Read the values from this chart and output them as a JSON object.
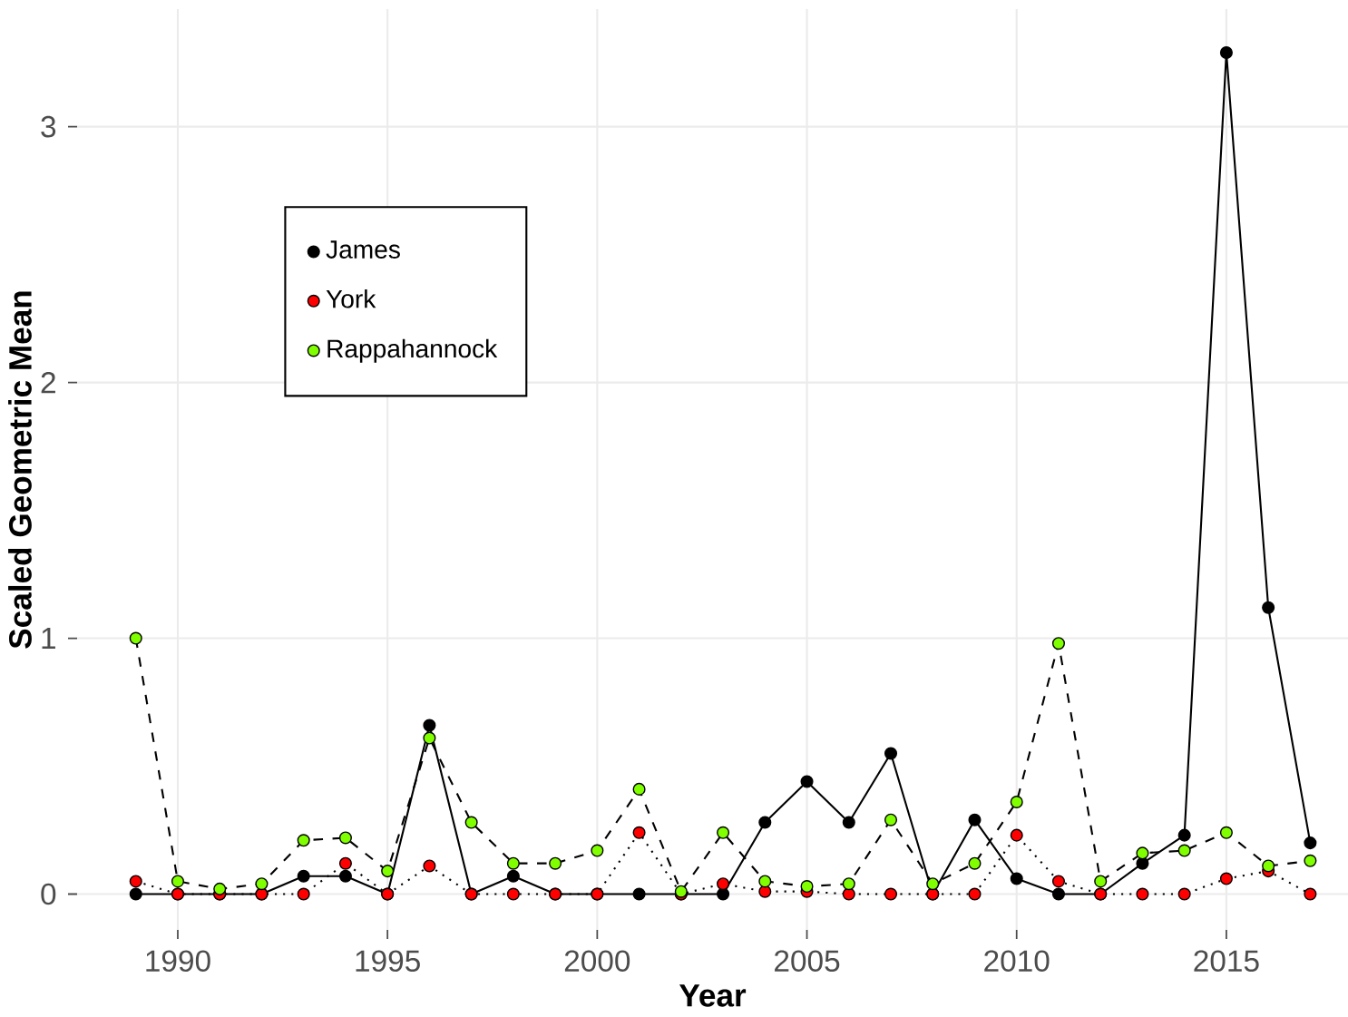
{
  "chart_data": {
    "type": "line",
    "xlabel": "Year",
    "ylabel": "Scaled Geometric Mean",
    "x": [
      1989,
      1990,
      1991,
      1992,
      1993,
      1994,
      1995,
      1996,
      1997,
      1998,
      1999,
      2000,
      2001,
      2002,
      2003,
      2004,
      2005,
      2006,
      2007,
      2008,
      2009,
      2010,
      2011,
      2012,
      2013,
      2014,
      2015,
      2016,
      2017
    ],
    "series": [
      {
        "name": "James",
        "color": "#000000",
        "line_style": "solid",
        "values": [
          0,
          0,
          0,
          0,
          0.07,
          0.07,
          0,
          0.66,
          0,
          0.07,
          0,
          0,
          0,
          0,
          0,
          0.28,
          0.44,
          0.28,
          0.55,
          0,
          0.29,
          0.06,
          0,
          0,
          0.12,
          0.23,
          3.29,
          1.12,
          0.2
        ]
      },
      {
        "name": "York",
        "color": "#ff0000",
        "line_style": "dotted",
        "values": [
          0.05,
          0,
          0,
          0,
          0,
          0.12,
          0,
          0.11,
          0,
          0,
          0,
          0,
          0.24,
          0,
          0.04,
          0.01,
          0.01,
          0,
          0,
          0,
          0,
          0.23,
          0.05,
          0,
          0,
          0,
          0.06,
          0.09,
          0
        ]
      },
      {
        "name": "Rappahannock",
        "color": "#80ff00",
        "line_style": "dashed",
        "values": [
          1.0,
          0.05,
          0.02,
          0.04,
          0.21,
          0.22,
          0.09,
          0.61,
          0.28,
          0.12,
          0.12,
          0.17,
          0.41,
          0.01,
          0.24,
          0.05,
          0.03,
          0.04,
          0.29,
          0.04,
          0.12,
          0.36,
          0.98,
          0.05,
          0.16,
          0.17,
          0.24,
          0.11,
          0.13
        ]
      }
    ],
    "xlim": [
      1987.6,
      2017.9
    ],
    "ylim": [
      -0.14,
      3.46
    ],
    "xticks": [
      1990,
      1995,
      2000,
      2005,
      2010,
      2015
    ],
    "yticks": [
      0,
      1,
      2,
      3
    ],
    "grid": true,
    "legend": "top left",
    "marker": "circle"
  }
}
